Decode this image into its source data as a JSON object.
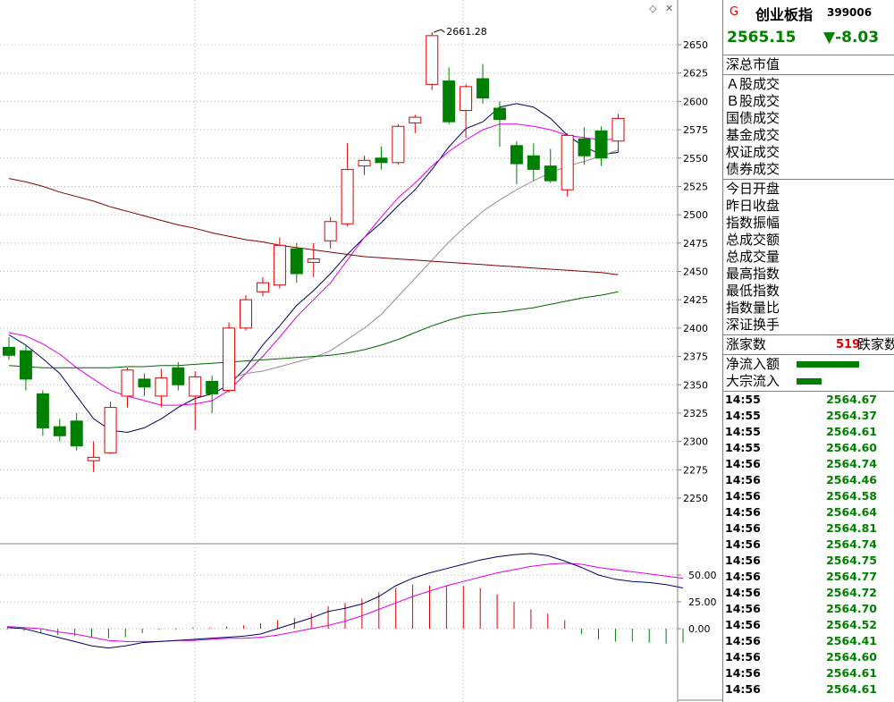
{
  "quote": {
    "flag": "G",
    "name": "创业板指",
    "code": "399006",
    "price": "2565.15",
    "change": "▼-8.03"
  },
  "fields_group1": [
    "深总市值"
  ],
  "fields_group2": [
    "Ａ股成交",
    "Ｂ股成交",
    "国债成交",
    "基金成交",
    "权证成交",
    "债券成交"
  ],
  "fields_group3": [
    "今日开盘",
    "昨日收盘",
    "指数振幅",
    "总成交额",
    "总成交量",
    "最高指数",
    "最低指数",
    "指数量比",
    "深证换手"
  ],
  "breadth": {
    "up_label": "涨家数",
    "up_count": "519",
    "down_label": "跌家数"
  },
  "flows": [
    {
      "label": "净流入额",
      "level": 1.0
    },
    {
      "label": "大宗流入",
      "level": 0.4
    }
  ],
  "ticks": [
    {
      "time": "14:55",
      "value": "2564.67"
    },
    {
      "time": "14:55",
      "value": "2564.37"
    },
    {
      "time": "14:55",
      "value": "2564.61"
    },
    {
      "time": "14:55",
      "value": "2564.60"
    },
    {
      "time": "14:56",
      "value": "2564.74"
    },
    {
      "time": "14:56",
      "value": "2564.46"
    },
    {
      "time": "14:56",
      "value": "2564.58"
    },
    {
      "time": "14:56",
      "value": "2564.64"
    },
    {
      "time": "14:56",
      "value": "2564.81"
    },
    {
      "time": "14:56",
      "value": "2564.74"
    },
    {
      "time": "14:56",
      "value": "2564.75"
    },
    {
      "time": "14:56",
      "value": "2564.77"
    },
    {
      "time": "14:56",
      "value": "2564.72"
    },
    {
      "time": "14:56",
      "value": "2564.70"
    },
    {
      "time": "14:56",
      "value": "2564.52"
    },
    {
      "time": "14:56",
      "value": "2564.41"
    },
    {
      "time": "14:56",
      "value": "2564.60"
    },
    {
      "time": "14:56",
      "value": "2564.61"
    },
    {
      "time": "14:56",
      "value": "2564.61"
    }
  ],
  "colors": {
    "up": "#e00000",
    "down": "#008000",
    "ma_fast": "#000066",
    "ma_mid": "#e000e0",
    "ma_slow": "#909090",
    "ma_long": "#006400",
    "ma_longest": "#800000",
    "grid": "#b0b0b0",
    "axis": "#808080"
  },
  "chart_data": {
    "type": "candlestick",
    "price_axis": {
      "min": 2250,
      "max": 2650,
      "ticks": [
        "2650",
        "2625",
        "2600",
        "2575",
        "2550",
        "2525",
        "2500",
        "2475",
        "2450",
        "2425",
        "2400",
        "2375",
        "2350",
        "2325",
        "2300",
        "2275",
        "2250"
      ]
    },
    "high_label": "2661.28",
    "candles": [
      {
        "o": 2383,
        "h": 2392,
        "l": 2372,
        "c": 2376
      },
      {
        "o": 2380,
        "h": 2385,
        "l": 2345,
        "c": 2355
      },
      {
        "o": 2342,
        "h": 2345,
        "l": 2305,
        "c": 2312
      },
      {
        "o": 2313,
        "h": 2320,
        "l": 2300,
        "c": 2305
      },
      {
        "o": 2318,
        "h": 2325,
        "l": 2292,
        "c": 2296
      },
      {
        "o": 2283,
        "h": 2300,
        "l": 2273,
        "c": 2286
      },
      {
        "o": 2290,
        "h": 2335,
        "l": 2289,
        "c": 2330
      },
      {
        "o": 2340,
        "h": 2365,
        "l": 2330,
        "c": 2363
      },
      {
        "o": 2355,
        "h": 2360,
        "l": 2340,
        "c": 2348
      },
      {
        "o": 2340,
        "h": 2364,
        "l": 2330,
        "c": 2356
      },
      {
        "o": 2365,
        "h": 2370,
        "l": 2345,
        "c": 2350
      },
      {
        "o": 2340,
        "h": 2362,
        "l": 2310,
        "c": 2357
      },
      {
        "o": 2353,
        "h": 2358,
        "l": 2325,
        "c": 2342
      },
      {
        "o": 2345,
        "h": 2405,
        "l": 2343,
        "c": 2400
      },
      {
        "o": 2400,
        "h": 2429,
        "l": 2398,
        "c": 2425
      },
      {
        "o": 2432,
        "h": 2445,
        "l": 2428,
        "c": 2440
      },
      {
        "o": 2438,
        "h": 2480,
        "l": 2435,
        "c": 2473
      },
      {
        "o": 2470,
        "h": 2475,
        "l": 2440,
        "c": 2448
      },
      {
        "o": 2458,
        "h": 2475,
        "l": 2445,
        "c": 2461
      },
      {
        "o": 2477,
        "h": 2498,
        "l": 2470,
        "c": 2494
      },
      {
        "o": 2492,
        "h": 2563,
        "l": 2490,
        "c": 2540
      },
      {
        "o": 2543,
        "h": 2552,
        "l": 2535,
        "c": 2548
      },
      {
        "o": 2550,
        "h": 2560,
        "l": 2540,
        "c": 2546
      },
      {
        "o": 2546,
        "h": 2580,
        "l": 2544,
        "c": 2578
      },
      {
        "o": 2581,
        "h": 2588,
        "l": 2572,
        "c": 2586
      },
      {
        "o": 2615,
        "h": 2661,
        "l": 2610,
        "c": 2658
      },
      {
        "o": 2618,
        "h": 2630,
        "l": 2580,
        "c": 2582
      },
      {
        "o": 2592,
        "h": 2615,
        "l": 2568,
        "c": 2613
      },
      {
        "o": 2620,
        "h": 2633,
        "l": 2598,
        "c": 2603
      },
      {
        "o": 2594,
        "h": 2600,
        "l": 2560,
        "c": 2584
      },
      {
        "o": 2561,
        "h": 2565,
        "l": 2527,
        "c": 2545
      },
      {
        "o": 2552,
        "h": 2563,
        "l": 2530,
        "c": 2540
      },
      {
        "o": 2543,
        "h": 2558,
        "l": 2528,
        "c": 2530
      },
      {
        "o": 2522,
        "h": 2572,
        "l": 2516,
        "c": 2570
      },
      {
        "o": 2567,
        "h": 2577,
        "l": 2544,
        "c": 2552
      },
      {
        "o": 2574,
        "h": 2578,
        "l": 2543,
        "c": 2550
      },
      {
        "o": 2565,
        "h": 2589,
        "l": 2555,
        "c": 2585
      }
    ],
    "ma_series": [
      {
        "key": "ma_fast",
        "values": [
          2394,
          2385,
          2373,
          2360,
          2340,
          2320,
          2310,
          2308,
          2312,
          2320,
          2330,
          2338,
          2342,
          2350,
          2365,
          2385,
          2402,
          2420,
          2433,
          2448,
          2465,
          2480,
          2493,
          2508,
          2522,
          2540,
          2560,
          2576,
          2582,
          2595,
          2598,
          2595,
          2585,
          2570,
          2560,
          2553,
          2555
        ]
      },
      {
        "key": "ma_mid",
        "values": [
          2396,
          2393,
          2386,
          2377,
          2365,
          2355,
          2345,
          2340,
          2336,
          2332,
          2332,
          2333,
          2336,
          2345,
          2360,
          2375,
          2392,
          2410,
          2425,
          2440,
          2460,
          2480,
          2498,
          2515,
          2528,
          2543,
          2556,
          2566,
          2575,
          2580,
          2580,
          2578,
          2575,
          2570,
          2568,
          2566,
          2567
        ]
      },
      {
        "key": "ma_slow",
        "values": [
          null,
          null,
          null,
          null,
          null,
          null,
          null,
          null,
          null,
          null,
          null,
          null,
          null,
          2355,
          2360,
          2362,
          2366,
          2370,
          2374,
          2380,
          2390,
          2400,
          2412,
          2428,
          2444,
          2460,
          2476,
          2490,
          2503,
          2513,
          2522,
          2530,
          2537,
          2543,
          2547,
          2552,
          2557
        ]
      },
      {
        "key": "ma_long",
        "values": [
          2367,
          2366,
          2365,
          2365,
          2365,
          2365,
          2365,
          2366,
          2366,
          2367,
          2367,
          2368,
          2369,
          2370,
          2371,
          2372,
          2373,
          2374,
          2375,
          2376,
          2378,
          2381,
          2385,
          2390,
          2396,
          2402,
          2407,
          2411,
          2413,
          2414,
          2416,
          2418,
          2421,
          2424,
          2427,
          2429,
          2432
        ]
      },
      {
        "key": "ma_longest",
        "values": [
          2532,
          2529,
          2525,
          2520,
          2516,
          2512,
          2507,
          2503,
          2499,
          2495,
          2491,
          2488,
          2484,
          2481,
          2478,
          2476,
          2473,
          2471,
          2469,
          2467,
          2465,
          2463,
          2462,
          2461,
          2460,
          2459,
          2458,
          2457,
          2456,
          2455,
          2454,
          2453,
          2452,
          2451,
          2450,
          2449,
          2447
        ]
      }
    ],
    "indicator": {
      "ticks": [
        "50.00",
        "25.00",
        "0.00"
      ],
      "range": [
        -20,
        75
      ],
      "line_fast": [
        1,
        0,
        -4,
        -8,
        -12,
        -16,
        -18,
        -16,
        -13,
        -12,
        -11,
        -10,
        -9,
        -8,
        -7,
        -5,
        0,
        5,
        10,
        16,
        19,
        23,
        30,
        40,
        47,
        52,
        56,
        60,
        64,
        67,
        69,
        70,
        68,
        63,
        57,
        50,
        46,
        44,
        43,
        41,
        38
      ],
      "line_slow": [
        2,
        1,
        0,
        -3,
        -5,
        -8,
        -11,
        -12,
        -12,
        -12,
        -11,
        -11,
        -10,
        -9,
        -9,
        -8,
        -6,
        -3,
        0,
        3,
        7,
        12,
        18,
        24,
        30,
        35,
        40,
        44,
        48,
        52,
        55,
        58,
        60,
        61,
        60,
        57,
        55,
        53,
        51,
        49,
        47
      ],
      "hist": [
        -1,
        -2,
        -4,
        -6,
        -7,
        -8,
        -9,
        -8,
        -4,
        -1,
        -1,
        1,
        1,
        2,
        3,
        5,
        8,
        10,
        14,
        21,
        24,
        28,
        34,
        38,
        41,
        40,
        40,
        40,
        38,
        32,
        25,
        18,
        14,
        8,
        -5,
        -10,
        -12,
        -12,
        -13,
        -14,
        -13
      ]
    }
  }
}
